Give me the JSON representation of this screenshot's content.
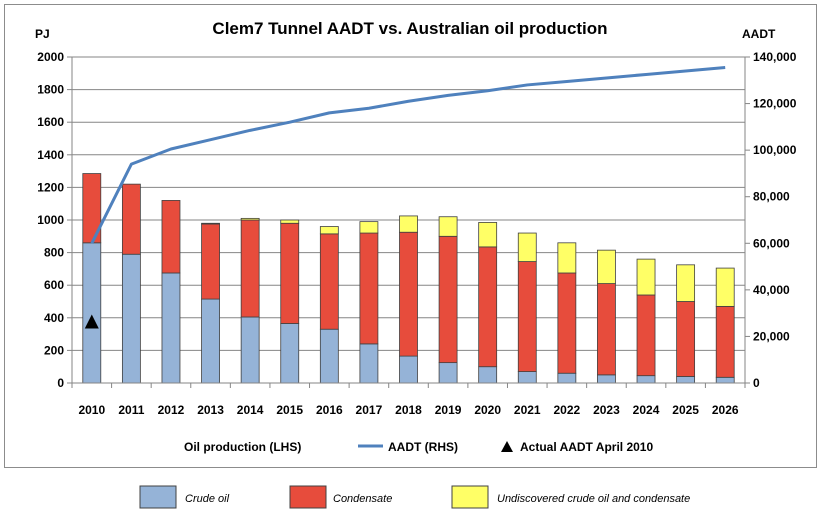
{
  "chart_data": {
    "type": "bar",
    "title": "Clem7 Tunnel AADT vs. Australian oil production",
    "y_left_unit": "PJ",
    "y_right_unit": "AADT",
    "ylim_left": [
      0,
      2000
    ],
    "yticks_left": [
      "0",
      "200",
      "400",
      "600",
      "800",
      "1000",
      "1200",
      "1400",
      "1600",
      "1800",
      "2000"
    ],
    "ylim_right": [
      0,
      140000
    ],
    "yticks_right": [
      "0",
      "20,000",
      "40,000",
      "60,000",
      "80,000",
      "100,000",
      "120,000",
      "140,000"
    ],
    "grid": true,
    "stacked": true,
    "categories": [
      "2010",
      "2011",
      "2012",
      "2013",
      "2014",
      "2015",
      "2016",
      "2017",
      "2018",
      "2019",
      "2020",
      "2021",
      "2022",
      "2023",
      "2024",
      "2025",
      "2026"
    ],
    "series": [
      {
        "name": "Crude oil",
        "color": "#95b3d7",
        "values": [
          860,
          790,
          675,
          515,
          405,
          365,
          330,
          240,
          165,
          125,
          100,
          70,
          60,
          50,
          45,
          40,
          35
        ]
      },
      {
        "name": "Condensate",
        "color": "#e74c3c",
        "values": [
          425,
          430,
          445,
          460,
          595,
          615,
          585,
          680,
          760,
          775,
          735,
          675,
          615,
          560,
          495,
          460,
          435
        ]
      },
      {
        "name": "Undiscovered crude oil and condensate",
        "color": "#ffff66",
        "values": [
          0,
          0,
          0,
          5,
          10,
          20,
          45,
          70,
          100,
          120,
          150,
          175,
          185,
          205,
          220,
          225,
          235
        ]
      }
    ],
    "line_series": {
      "name": "AADT (RHS)",
      "color": "#4f81bd",
      "axis": "right",
      "values": [
        60000,
        94000,
        100500,
        104500,
        108500,
        112000,
        116000,
        118000,
        121000,
        123500,
        125500,
        128000,
        129500,
        131000,
        132500,
        134000,
        135500
      ]
    },
    "marker_series": {
      "name": "Actual AADT April 2010",
      "category": "2010",
      "value": 26000,
      "axis": "right",
      "color": "#000000"
    },
    "legend_top": {
      "item_bars": "Oil production (LHS)",
      "item_line": "AADT (RHS)",
      "item_marker": "Actual AADT April 2010"
    },
    "legend_bottom": [
      "Crude oil",
      "Condensate",
      "Undiscovered crude oil and condensate"
    ],
    "colors": {
      "axis": "#868686",
      "grid": "#868686",
      "bar_edge": "#404040"
    }
  }
}
